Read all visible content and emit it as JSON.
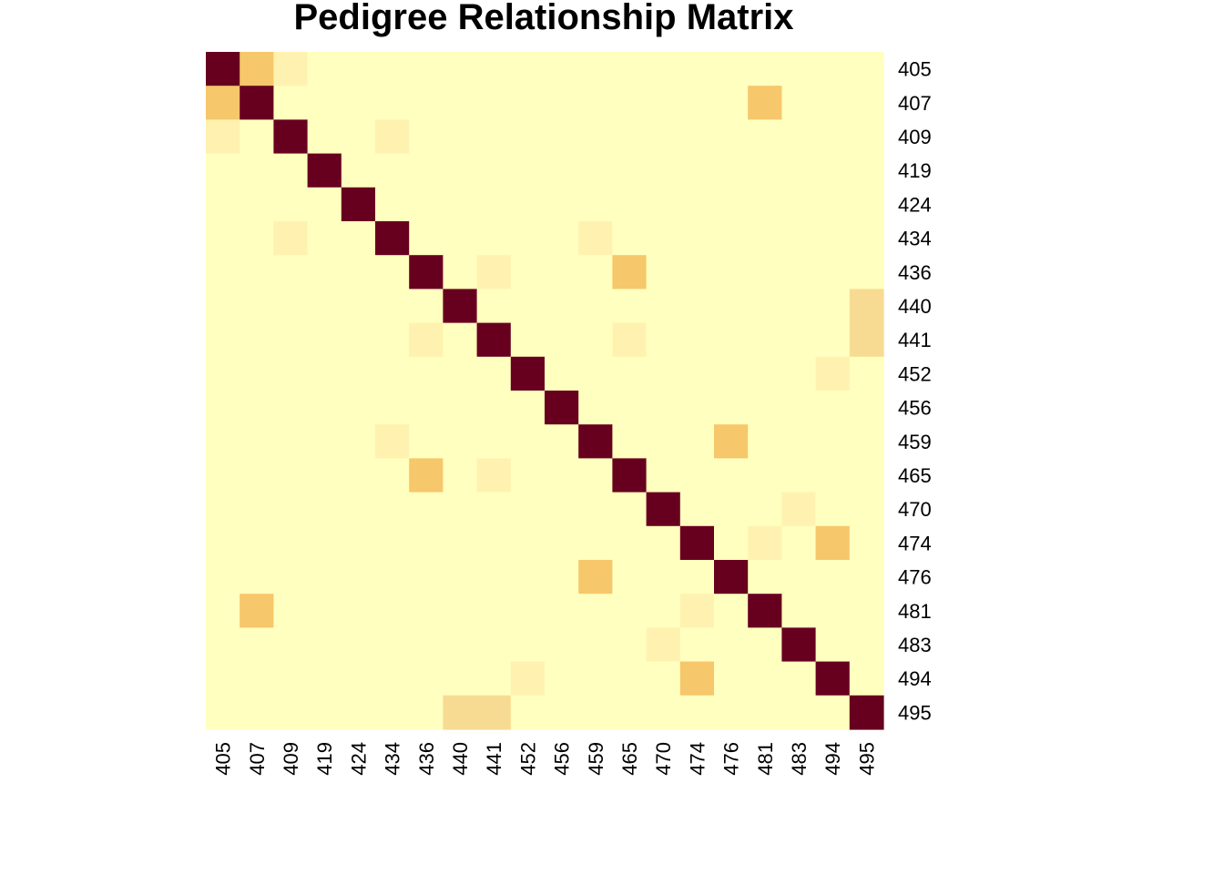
{
  "chart_data": {
    "type": "heatmap",
    "title": "Pedigree Relationship Matrix",
    "row_labels": [
      "405",
      "407",
      "409",
      "419",
      "424",
      "434",
      "436",
      "440",
      "441",
      "452",
      "456",
      "459",
      "465",
      "470",
      "474",
      "476",
      "481",
      "483",
      "494",
      "495"
    ],
    "col_labels": [
      "405",
      "407",
      "409",
      "419",
      "424",
      "434",
      "436",
      "440",
      "441",
      "452",
      "456",
      "459",
      "465",
      "470",
      "474",
      "476",
      "481",
      "483",
      "494",
      "495"
    ],
    "values": [
      [
        1.0,
        0.5,
        0.125,
        0,
        0,
        0,
        0,
        0,
        0,
        0,
        0,
        0,
        0,
        0,
        0,
        0,
        0,
        0,
        0,
        0
      ],
      [
        0.5,
        1.0,
        0,
        0,
        0,
        0,
        0,
        0,
        0,
        0,
        0,
        0,
        0,
        0,
        0,
        0,
        0.5,
        0,
        0,
        0
      ],
      [
        0.125,
        0,
        1.0,
        0,
        0,
        0.125,
        0,
        0,
        0,
        0,
        0,
        0,
        0,
        0,
        0,
        0,
        0,
        0,
        0,
        0
      ],
      [
        0,
        0,
        0,
        1.0,
        0,
        0,
        0,
        0,
        0,
        0,
        0,
        0,
        0,
        0,
        0,
        0,
        0,
        0,
        0,
        0
      ],
      [
        0,
        0,
        0,
        0,
        1.0,
        0,
        0,
        0,
        0,
        0,
        0,
        0,
        0,
        0,
        0,
        0,
        0,
        0,
        0,
        0
      ],
      [
        0,
        0,
        0.125,
        0,
        0,
        1.0,
        0,
        0,
        0,
        0,
        0,
        0.125,
        0,
        0,
        0,
        0,
        0,
        0,
        0,
        0
      ],
      [
        0,
        0,
        0,
        0,
        0,
        0,
        1.0,
        0,
        0.125,
        0,
        0,
        0,
        0.5,
        0,
        0,
        0,
        0,
        0,
        0,
        0
      ],
      [
        0,
        0,
        0,
        0,
        0,
        0,
        0,
        1.0,
        0,
        0,
        0,
        0,
        0,
        0,
        0,
        0,
        0,
        0,
        0,
        0.25
      ],
      [
        0,
        0,
        0,
        0,
        0,
        0,
        0.125,
        0,
        1.0,
        0,
        0,
        0,
        0.125,
        0,
        0,
        0,
        0,
        0,
        0,
        0.25
      ],
      [
        0,
        0,
        0,
        0,
        0,
        0,
        0,
        0,
        0,
        1.0,
        0,
        0,
        0,
        0,
        0,
        0,
        0,
        0,
        0.125,
        0
      ],
      [
        0,
        0,
        0,
        0,
        0,
        0,
        0,
        0,
        0,
        0,
        1.0,
        0,
        0,
        0,
        0,
        0,
        0,
        0,
        0,
        0
      ],
      [
        0,
        0,
        0,
        0,
        0,
        0.125,
        0,
        0,
        0,
        0,
        0,
        1.0,
        0,
        0,
        0,
        0.5,
        0,
        0,
        0,
        0
      ],
      [
        0,
        0,
        0,
        0,
        0,
        0,
        0.5,
        0,
        0.125,
        0,
        0,
        0,
        1.0,
        0,
        0,
        0,
        0,
        0,
        0,
        0
      ],
      [
        0,
        0,
        0,
        0,
        0,
        0,
        0,
        0,
        0,
        0,
        0,
        0,
        0,
        1.0,
        0,
        0,
        0,
        0.125,
        0,
        0
      ],
      [
        0,
        0,
        0,
        0,
        0,
        0,
        0,
        0,
        0,
        0,
        0,
        0,
        0,
        0,
        1.0,
        0,
        0.125,
        0,
        0.5,
        0
      ],
      [
        0,
        0,
        0,
        0,
        0,
        0,
        0,
        0,
        0,
        0,
        0,
        0.5,
        0,
        0,
        0,
        1.0,
        0,
        0,
        0,
        0
      ],
      [
        0,
        0.5,
        0,
        0,
        0,
        0,
        0,
        0,
        0,
        0,
        0,
        0,
        0,
        0,
        0.125,
        0,
        1.0,
        0,
        0,
        0
      ],
      [
        0,
        0,
        0,
        0,
        0,
        0,
        0,
        0,
        0,
        0,
        0,
        0,
        0,
        0.125,
        0,
        0,
        0,
        1.0,
        0,
        0
      ],
      [
        0,
        0,
        0,
        0,
        0,
        0,
        0,
        0,
        0,
        0.125,
        0,
        0,
        0,
        0,
        0.5,
        0,
        0,
        0,
        1.0,
        0
      ],
      [
        0,
        0,
        0,
        0,
        0,
        0,
        0,
        0.25,
        0.25,
        0,
        0,
        0,
        0,
        0,
        0,
        0,
        0,
        0,
        0,
        1.0
      ]
    ],
    "color_scale": {
      "0": "#FFFFBF",
      "0.125": "#FFF2B0",
      "0.25": "#F8DB92",
      "0.5": "#F6C76B",
      "1": "#67001F"
    },
    "legend": "none",
    "grid": false
  }
}
